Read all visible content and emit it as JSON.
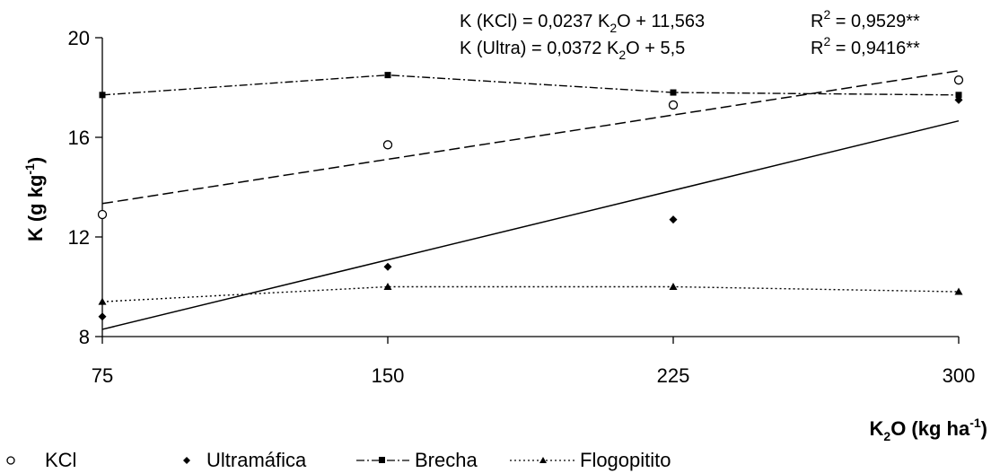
{
  "chart_data": {
    "type": "scatter",
    "xlabel": {
      "main": "K",
      "sub": "2",
      "rest": "O (kg ha",
      "sup": "-1",
      "end": ")"
    },
    "ylabel": {
      "main": "K (g kg",
      "sup": "-1",
      "end": ")"
    },
    "x": [
      75,
      150,
      225,
      300
    ],
    "x_ticks": [
      "75",
      "150",
      "225",
      "300"
    ],
    "y_ticks": [
      "8",
      "12",
      "16",
      "20"
    ],
    "xlim": [
      75,
      300
    ],
    "ylim": [
      8,
      20
    ],
    "grid": false,
    "legend_position": "bottom",
    "equations": [
      {
        "lhs": "K (KCl) = 0,0237 K",
        "sub": "2",
        "rhs": "O + 11,563",
        "r": "R",
        "r_sup": "2",
        "r_val": " = 0,9529**"
      },
      {
        "lhs": "K (Ultra) = 0,0372 K",
        "sub": "2",
        "rhs": "O + 5,5",
        "r": "R",
        "r_sup": "2",
        "r_val": " = 0,9416**"
      }
    ],
    "series": [
      {
        "name": "KCl",
        "marker": "open-circle",
        "values": [
          12.9,
          15.7,
          17.3,
          18.3
        ],
        "fit": {
          "type": "linear",
          "slope": 0.0237,
          "intercept": 11.563,
          "style": "dashed"
        }
      },
      {
        "name": "Ultramáfica",
        "marker": "diamond",
        "values": [
          8.8,
          10.8,
          12.7,
          17.5
        ],
        "fit": {
          "type": "linear",
          "slope": 0.0372,
          "intercept": 5.5,
          "style": "solid"
        }
      },
      {
        "name": "Brecha",
        "marker": "square",
        "values": [
          17.7,
          18.5,
          17.8,
          17.7
        ],
        "line_style": "dash-dot"
      },
      {
        "name": "Flogopitito",
        "marker": "triangle",
        "values": [
          9.4,
          10.0,
          10.0,
          9.8
        ],
        "line_style": "dotted"
      }
    ]
  }
}
